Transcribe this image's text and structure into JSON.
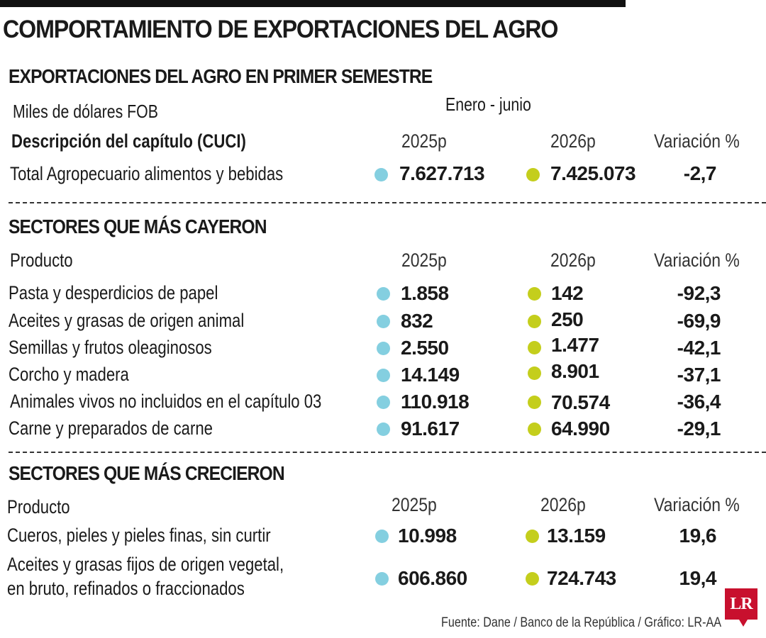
{
  "title": "COMPORTAMIENTO DE EXPORTACIONES DEL AGRO",
  "colors": {
    "y2025": "#84cfe0",
    "y2026": "#c4ce1c"
  },
  "summary": {
    "title": "EXPORTACIONES DEL AGRO EN PRIMER SEMESTRE",
    "unit": "Miles de dólares FOB",
    "period": "Enero - junio",
    "headers": {
      "desc": "Descripción del capítulo (CUCI)",
      "y2025": "2025p",
      "y2026": "2026p",
      "var": "Variación %"
    },
    "row": {
      "label": "Total Agropecuario alimentos y bebidas",
      "v2025": "7.627.713",
      "v2026": "7.425.073",
      "var": "-2,7"
    }
  },
  "fell": {
    "title": "SECTORES QUE MÁS CAYERON",
    "headers": {
      "product": "Producto",
      "y2025": "2025p",
      "y2026": "2026p",
      "var": "Variación %"
    },
    "rows": [
      {
        "label": "Pasta y desperdicios de papel",
        "v2025": "1.858",
        "v2026": "142",
        "var": "-92,3"
      },
      {
        "label": "Aceites y grasas de origen animal",
        "v2025": "832",
        "v2026": "250",
        "var": "-69,9"
      },
      {
        "label": "Semillas y frutos oleaginosos",
        "v2025": "2.550",
        "v2026": "1.477",
        "var": "-42,1"
      },
      {
        "label": "Corcho y madera",
        "v2025": "14.149",
        "v2026": "8.901",
        "var": "-37,1"
      },
      {
        "label": "Animales vivos no incluidos en el capítulo 03",
        "v2025": "110.918",
        "v2026": "70.574",
        "var": "-36,4"
      },
      {
        "label": "Carne y preparados de carne",
        "v2025": "91.617",
        "v2026": "64.990",
        "var": "-29,1"
      }
    ]
  },
  "grew": {
    "title": "SECTORES QUE MÁS CRECIERON",
    "headers": {
      "product": "Producto",
      "y2025": "2025p",
      "y2026": "2026p",
      "var": "Variación %"
    },
    "rows": [
      {
        "label": "Cueros, pieles y pieles finas, sin curtir",
        "v2025": "10.998",
        "v2026": "13.159",
        "var": "19,6"
      },
      {
        "label_line1": "Aceites y grasas fijos de origen vegetal,",
        "label_line2": "en bruto, refinados o fraccionados",
        "v2025": "606.860",
        "v2026": "724.743",
        "var": "19,4"
      }
    ]
  },
  "source": "Fuente: Dane / Banco de la República / Gráfico: LR-AA",
  "logo_text": "LR"
}
